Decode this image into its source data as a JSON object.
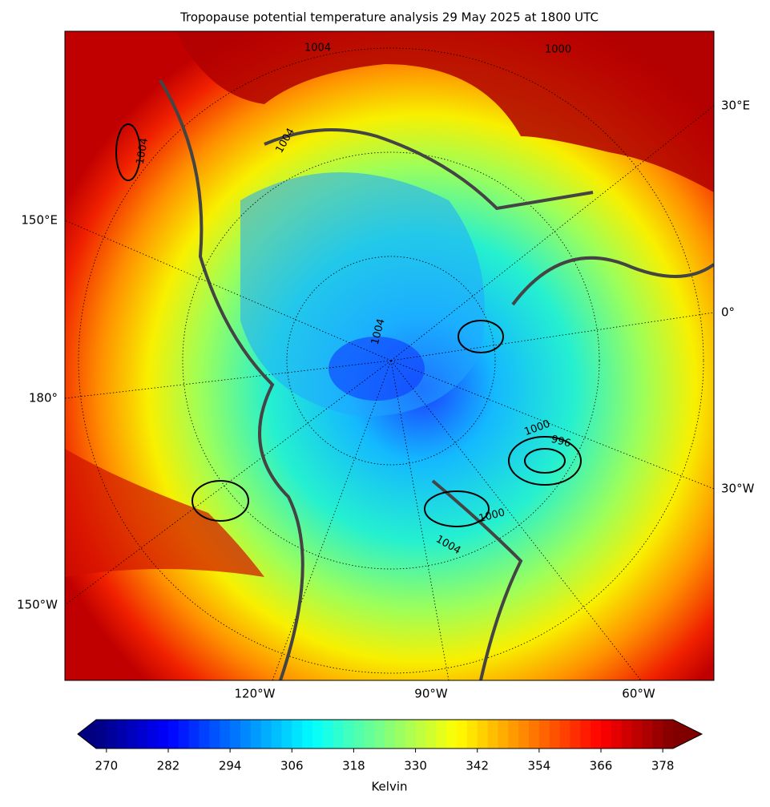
{
  "title": "Tropopause potential temperature analysis 29 May 2025 at 1800 UTC",
  "map": {
    "right_labels": [
      "30°E",
      "0°",
      "30°W"
    ],
    "left_labels": [
      "150°E",
      "180°",
      "150°W"
    ],
    "bottom_labels": [
      "120°W",
      "90°W",
      "60°W"
    ],
    "contour_labels": [
      "1004",
      "1004",
      "1004",
      "1004",
      "1000",
      "996",
      "1000",
      "1004",
      "1000"
    ]
  },
  "colorbar": {
    "label": "Kelvin",
    "lim": [
      268,
      380
    ],
    "ticks": [
      270,
      282,
      294,
      306,
      318,
      330,
      342,
      354,
      366,
      378
    ]
  }
}
